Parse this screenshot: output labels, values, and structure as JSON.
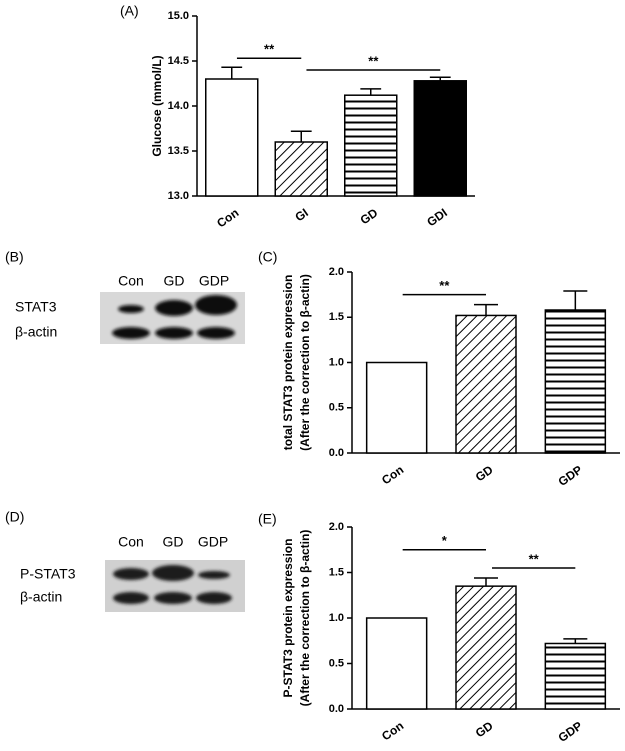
{
  "chart_data": [
    {
      "type": "bar",
      "panel": "(A)",
      "ylabel": "Glucose (mmol/L)",
      "categories": [
        "Con",
        "GI",
        "GD",
        "GDI"
      ],
      "values": [
        14.3,
        13.6,
        14.12,
        14.28
      ],
      "errors": [
        0.13,
        0.12,
        0.07,
        0.04
      ],
      "patterns": [
        "none",
        "diagonal",
        "horizontal",
        "solid"
      ],
      "color": "#000000",
      "ylim": [
        13,
        15
      ],
      "yticks": [
        {
          "value": 13,
          "label": "13.0"
        },
        13.5,
        {
          "value": 14,
          "label": "14.0"
        },
        14.5,
        {
          "value": 15,
          "label": "15.0"
        }
      ],
      "annotations": [
        {
          "text": "**",
          "from": 0,
          "to": 1,
          "y": 14.53
        },
        {
          "text": "**",
          "from": 1,
          "to": 3,
          "y": 14.4
        }
      ]
    },
    {
      "type": "bar",
      "panel": "(C)",
      "ylabel": [
        "total STAT3 protein expression",
        "(After the correction to β-actin)"
      ],
      "categories": [
        "Con",
        "GD",
        "GDP"
      ],
      "values": [
        1.0,
        1.52,
        1.58
      ],
      "errors": [
        null,
        0.12,
        0.21
      ],
      "patterns": [
        "none",
        "diagonal",
        "horizontal"
      ],
      "color": "#000000",
      "ylim": [
        0,
        2
      ],
      "yticks": [
        {
          "value": 0,
          "label": "0.0"
        },
        0.5,
        {
          "value": 1,
          "label": "1.0"
        },
        1.5,
        {
          "value": 2,
          "label": "2.0"
        }
      ],
      "annotations": [
        {
          "text": "**",
          "from": 0,
          "to": 1,
          "y": 1.75
        }
      ]
    },
    {
      "type": "bar",
      "panel": "(E)",
      "ylabel": [
        "P-STAT3 protein expression",
        "(After the correction to β-actin)"
      ],
      "categories": [
        "Con",
        "GD",
        "GDP"
      ],
      "values": [
        1.0,
        1.35,
        0.72
      ],
      "errors": [
        null,
        0.09,
        0.05
      ],
      "patterns": [
        "none",
        "diagonal",
        "horizontal"
      ],
      "color": "#000000",
      "ylim": [
        0,
        2
      ],
      "yticks": [
        {
          "value": 0,
          "label": "0.0"
        },
        0.5,
        {
          "value": 1,
          "label": "1.0"
        },
        1.5,
        {
          "value": 2,
          "label": "2.0"
        }
      ],
      "annotations": [
        {
          "text": "*",
          "from": 0,
          "to": 1,
          "y": 1.75
        },
        {
          "text": "**",
          "from": 1,
          "to": 2,
          "y": 1.55
        }
      ]
    }
  ],
  "blots": [
    {
      "panel": "(B)",
      "lanes": [
        "Con",
        "GD",
        "GDP"
      ],
      "rows": [
        "STAT3",
        "β-actin"
      ]
    },
    {
      "panel": "(D)",
      "lanes": [
        "Con",
        "GD",
        "GDP"
      ],
      "rows": [
        "P-STAT3",
        "β-actin"
      ]
    }
  ]
}
